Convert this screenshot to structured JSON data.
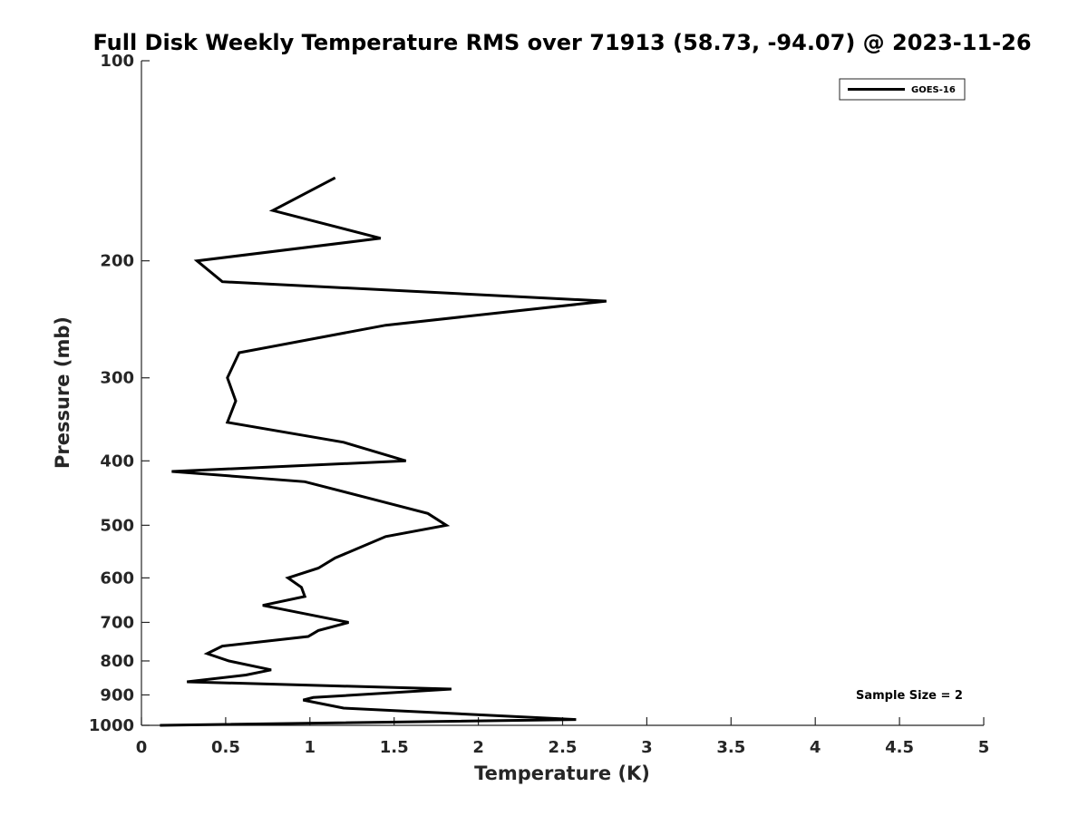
{
  "chart_data": {
    "type": "line",
    "title": "Full Disk Weekly Temperature RMS over 71913 (58.73, -94.07) @ 2023-11-26",
    "xlabel": "Temperature (K)",
    "ylabel": "Pressure (mb)",
    "xlim": [
      0,
      5
    ],
    "ylim": [
      100,
      1000
    ],
    "y_scale": "log",
    "y_reversed": true,
    "x_ticks": [
      0,
      0.5,
      1,
      1.5,
      2,
      2.5,
      3,
      3.5,
      4,
      4.5,
      5
    ],
    "x_tick_labels": [
      "0",
      "0.5",
      "1",
      "1.5",
      "2",
      "2.5",
      "3",
      "3.5",
      "4",
      "4.5",
      "5"
    ],
    "y_ticks": [
      100,
      200,
      300,
      400,
      500,
      600,
      700,
      800,
      900,
      1000
    ],
    "y_tick_labels": [
      "100",
      "200",
      "300",
      "400",
      "500",
      "600",
      "700",
      "800",
      "900",
      "1000"
    ],
    "grid": false,
    "legend_position": "top-right",
    "series": [
      {
        "name": "GOES-16",
        "color": "#000000",
        "points": [
          {
            "x": 1.15,
            "y": 150
          },
          {
            "x": 0.78,
            "y": 168
          },
          {
            "x": 1.42,
            "y": 185
          },
          {
            "x": 0.33,
            "y": 200
          },
          {
            "x": 0.48,
            "y": 215
          },
          {
            "x": 2.76,
            "y": 230
          },
          {
            "x": 1.45,
            "y": 250
          },
          {
            "x": 0.58,
            "y": 275
          },
          {
            "x": 0.51,
            "y": 300
          },
          {
            "x": 0.56,
            "y": 325
          },
          {
            "x": 0.51,
            "y": 350
          },
          {
            "x": 1.2,
            "y": 375
          },
          {
            "x": 1.57,
            "y": 400
          },
          {
            "x": 0.18,
            "y": 415
          },
          {
            "x": 0.97,
            "y": 430
          },
          {
            "x": 1.42,
            "y": 460
          },
          {
            "x": 1.7,
            "y": 480
          },
          {
            "x": 1.81,
            "y": 500
          },
          {
            "x": 1.45,
            "y": 520
          },
          {
            "x": 1.15,
            "y": 560
          },
          {
            "x": 1.05,
            "y": 580
          },
          {
            "x": 0.87,
            "y": 600
          },
          {
            "x": 0.95,
            "y": 620
          },
          {
            "x": 0.97,
            "y": 640
          },
          {
            "x": 0.72,
            "y": 660
          },
          {
            "x": 1.23,
            "y": 700
          },
          {
            "x": 1.05,
            "y": 720
          },
          {
            "x": 0.99,
            "y": 735
          },
          {
            "x": 0.48,
            "y": 760
          },
          {
            "x": 0.39,
            "y": 780
          },
          {
            "x": 0.52,
            "y": 800
          },
          {
            "x": 0.77,
            "y": 825
          },
          {
            "x": 0.62,
            "y": 840
          },
          {
            "x": 0.27,
            "y": 860
          },
          {
            "x": 1.84,
            "y": 882
          },
          {
            "x": 1.02,
            "y": 908
          },
          {
            "x": 0.96,
            "y": 916
          },
          {
            "x": 1.2,
            "y": 942
          },
          {
            "x": 2.58,
            "y": 980
          },
          {
            "x": 0.11,
            "y": 1000
          }
        ]
      }
    ],
    "annotations": [
      "Sample Size = 2"
    ]
  }
}
